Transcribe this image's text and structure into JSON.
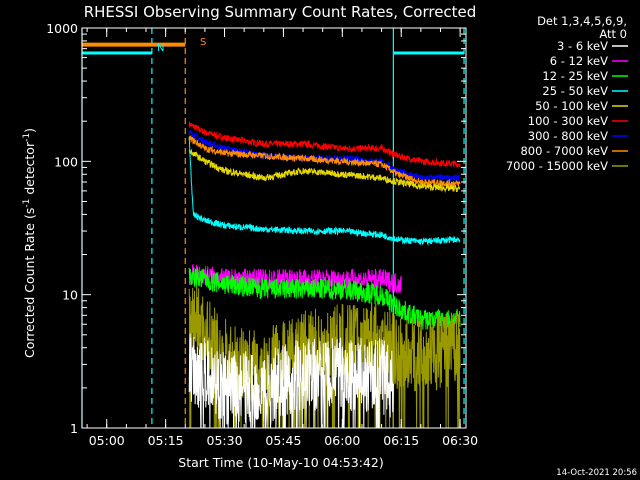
{
  "chart_data": {
    "type": "line",
    "title": "RHESSI Observing Summary Count Rates, Corrected",
    "xlabel": "Start Time (10-May-10 04:53:42)",
    "ylabel": "Corrected Count Rate (s",
    "ylabel_sup": "-1",
    "ylabel_mid": " detector",
    "ylabel_sup2": "-1",
    "ylabel_end": ")",
    "y_scale": "log",
    "ylim": [
      1,
      1000
    ],
    "xlim": [
      "04:53:42",
      "06:31:30"
    ],
    "y_ticks": [
      "1",
      "10",
      "100",
      "1000"
    ],
    "x_ticks": [
      "05:00",
      "05:15",
      "05:30",
      "05:45",
      "06:00",
      "06:15",
      "06:30"
    ],
    "grid": false,
    "legend": {
      "placement": "right",
      "header1": "Det 1,3,4,5,6,9,",
      "header2": "Att 0",
      "entries": [
        {
          "label": "3 - 6 keV",
          "color": "#ffffff"
        },
        {
          "label": "6 - 12 keV",
          "color": "#ff00ff"
        },
        {
          "label": "12 - 25 keV",
          "color": "#00ff00"
        },
        {
          "label": "25 - 50 keV",
          "color": "#00ffff"
        },
        {
          "label": "50 - 100 keV",
          "color": "#e6d800"
        },
        {
          "label": "100 - 300 keV",
          "color": "#ff0000"
        },
        {
          "label": "300 - 800 keV",
          "color": "#0000ff"
        },
        {
          "label": "800 - 7000 keV",
          "color": "#ff8c00"
        },
        {
          "label": "7000 - 15000 keV",
          "color": "#9a9a00"
        }
      ]
    },
    "annotations": {
      "saa_label": "S",
      "night_label": "N",
      "timestamp": "14-Oct-2021 20:56"
    },
    "series": [
      {
        "color": "#ff0000",
        "x": [
          "05:21",
          "05:25",
          "05:30",
          "05:40",
          "05:50",
          "06:00",
          "06:10",
          "06:14",
          "06:20",
          "06:30"
        ],
        "y": [
          190,
          165,
          150,
          135,
          135,
          125,
          125,
          110,
          100,
          95
        ]
      },
      {
        "color": "#0000ff",
        "x": [
          "05:21",
          "05:25",
          "05:30",
          "05:40",
          "05:50",
          "06:00",
          "06:10",
          "06:14",
          "06:20",
          "06:30"
        ],
        "y": [
          165,
          140,
          125,
          110,
          105,
          105,
          100,
          85,
          75,
          75
        ]
      },
      {
        "color": "#ff8c00",
        "x": [
          "05:21",
          "05:25",
          "05:30",
          "05:40",
          "05:50",
          "06:00",
          "06:10",
          "06:14",
          "06:20",
          "06:30"
        ],
        "y": [
          150,
          125,
          115,
          110,
          105,
          100,
          95,
          80,
          70,
          68
        ]
      },
      {
        "color": "#e6d800",
        "x": [
          "05:21",
          "05:25",
          "05:30",
          "05:40",
          "05:50",
          "06:00",
          "06:10",
          "06:14",
          "06:20",
          "06:30"
        ],
        "y": [
          120,
          100,
          85,
          75,
          85,
          80,
          75,
          70,
          65,
          62
        ]
      },
      {
        "color": "#00ffff",
        "x": [
          "05:21",
          "05:22",
          "05:25",
          "05:30",
          "05:40",
          "05:50",
          "06:00",
          "06:10",
          "06:14",
          "06:20",
          "06:30"
        ],
        "y": [
          150,
          40,
          36,
          33,
          31,
          30,
          30,
          28,
          26,
          25,
          26
        ]
      },
      {
        "color": "#ff00ff",
        "x": [
          "05:21",
          "05:25",
          "05:30",
          "05:40",
          "05:50",
          "06:00",
          "06:10",
          "06:15"
        ],
        "y": [
          14,
          14,
          13,
          13,
          13,
          13,
          13,
          12
        ]
      },
      {
        "color": "#00ff00",
        "x": [
          "05:21",
          "05:25",
          "05:30",
          "05:40",
          "05:50",
          "06:00",
          "06:10",
          "06:14",
          "06:20",
          "06:30"
        ],
        "y": [
          14,
          13,
          12,
          11,
          11,
          11,
          10,
          8,
          6.5,
          6.5
        ]
      },
      {
        "color": "#9a9a00",
        "x": [
          "05:21",
          "05:24",
          "05:28",
          "05:33",
          "05:40",
          "05:50",
          "06:00",
          "06:10",
          "06:14",
          "06:20",
          "06:30"
        ],
        "y": [
          7,
          6,
          4,
          3,
          3,
          4,
          4.5,
          5,
          3.5,
          3.5,
          4
        ]
      },
      {
        "color": "#ffffff",
        "x": [
          "05:21",
          "05:25",
          "05:30",
          "05:40",
          "05:50",
          "06:00",
          "06:10",
          "06:13"
        ],
        "y": [
          3,
          2.5,
          2,
          2,
          2.5,
          2.5,
          2.5,
          2
        ]
      }
    ],
    "bars": {
      "saa": {
        "color": "#ff8c00",
        "from": "04:53:42",
        "to": "05:20:00",
        "value": 750
      },
      "night": [
        {
          "color": "#00ffff",
          "from": "04:53:42",
          "to": "05:11:30",
          "value": 650
        },
        {
          "color": "#00ffff",
          "from": "06:13:00",
          "to": "06:31:00",
          "value": 650
        }
      ],
      "lines": [
        {
          "color": "#00ffff",
          "at": "04:53:42",
          "style": "solid"
        },
        {
          "color": "#00ffff",
          "at": "05:11:30",
          "style": "dashed"
        },
        {
          "color": "#ff8c00",
          "at": "05:20:00",
          "style": "dashed"
        },
        {
          "color": "#00ffff",
          "at": "06:13:00",
          "style": "solid"
        },
        {
          "color": "#00ffff",
          "at": "06:31:00",
          "style": "dashed"
        }
      ]
    }
  }
}
